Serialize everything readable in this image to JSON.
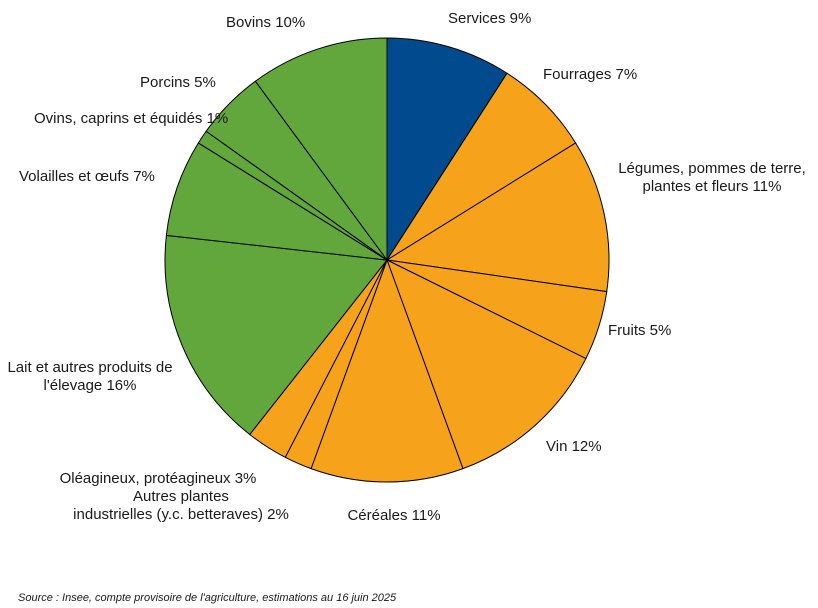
{
  "chart_data": {
    "type": "pie",
    "start": "top",
    "direction": "clockwise",
    "colors": {
      "services": "#004a8d",
      "vegetal": "#f7a21b",
      "animal": "#62a73c",
      "border": "#000000"
    },
    "slices": [
      {
        "label": "Services",
        "value": 9,
        "group": "services",
        "label_lines": [
          "Services 9%"
        ]
      },
      {
        "label": "Fourrages",
        "value": 7,
        "group": "vegetal",
        "label_lines": [
          "Fourrages 7%"
        ]
      },
      {
        "label": "Légumes, pommes de terre, plantes et fleurs",
        "value": 11,
        "group": "vegetal",
        "label_lines": [
          "Légumes, pommes de terre,",
          "plantes et fleurs 11%"
        ]
      },
      {
        "label": "Fruits",
        "value": 5,
        "group": "vegetal",
        "label_lines": [
          "Fruits  5%"
        ]
      },
      {
        "label": "Vin",
        "value": 12,
        "group": "vegetal",
        "label_lines": [
          "Vin 12%"
        ]
      },
      {
        "label": "Céréales",
        "value": 11,
        "group": "vegetal",
        "label_lines": [
          "Céréales 11%"
        ]
      },
      {
        "label": "Autres plantes industrielles (y.c. betteraves)",
        "value": 2,
        "group": "vegetal",
        "label_lines": [
          "Autres plantes",
          "industrielles (y.c. betteraves) 2%"
        ]
      },
      {
        "label": "Oléagineux, protéagineux",
        "value": 3,
        "group": "vegetal",
        "label_lines": [
          "Oléagineux, protéagineux 3%"
        ]
      },
      {
        "label": "Lait et autres produits de l'élevage",
        "value": 16,
        "group": "animal",
        "label_lines": [
          "Lait et autres produits de",
          "l'élevage 16%"
        ]
      },
      {
        "label": "Volailles et œufs",
        "value": 7,
        "group": "animal",
        "label_lines": [
          "Volailles et œufs 7%"
        ]
      },
      {
        "label": "Ovins, caprins et équidés",
        "value": 1,
        "group": "animal",
        "label_lines": [
          "Ovins, caprins et équidés 1%"
        ]
      },
      {
        "label": "Porcins",
        "value": 5,
        "group": "animal",
        "label_lines": [
          "Porcins 5%"
        ]
      },
      {
        "label": "Bovins",
        "value": 10,
        "group": "animal",
        "label_lines": [
          "Bovins 10%"
        ]
      }
    ]
  },
  "source": "Source : Insee, compte provisoire de l'agriculture, estimations au 16 juin 2025"
}
